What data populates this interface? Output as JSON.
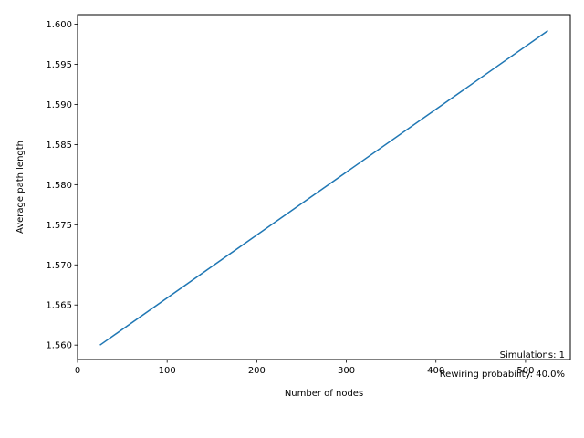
{
  "chart_data": {
    "type": "line",
    "title": "",
    "xlabel": "Number of nodes",
    "ylabel": "Average path length",
    "xlim": [
      0,
      550
    ],
    "ylim": [
      1.5582,
      1.6012
    ],
    "xticks": [
      0,
      100,
      200,
      300,
      400,
      500
    ],
    "yticks": [
      1.56,
      1.565,
      1.57,
      1.575,
      1.58,
      1.585,
      1.59,
      1.595,
      1.6
    ],
    "ytick_labels": [
      "1.560",
      "1.565",
      "1.570",
      "1.575",
      "1.580",
      "1.585",
      "1.590",
      "1.595",
      "1.600"
    ],
    "grid": false,
    "series": [
      {
        "x": [
          25,
          525
        ],
        "y": [
          1.56,
          1.5992
        ],
        "color": "#1f77b4"
      }
    ],
    "annotations": {
      "simulations": "Simulations: 1",
      "rewiring": "Rewiring probability: 40.0%"
    }
  }
}
